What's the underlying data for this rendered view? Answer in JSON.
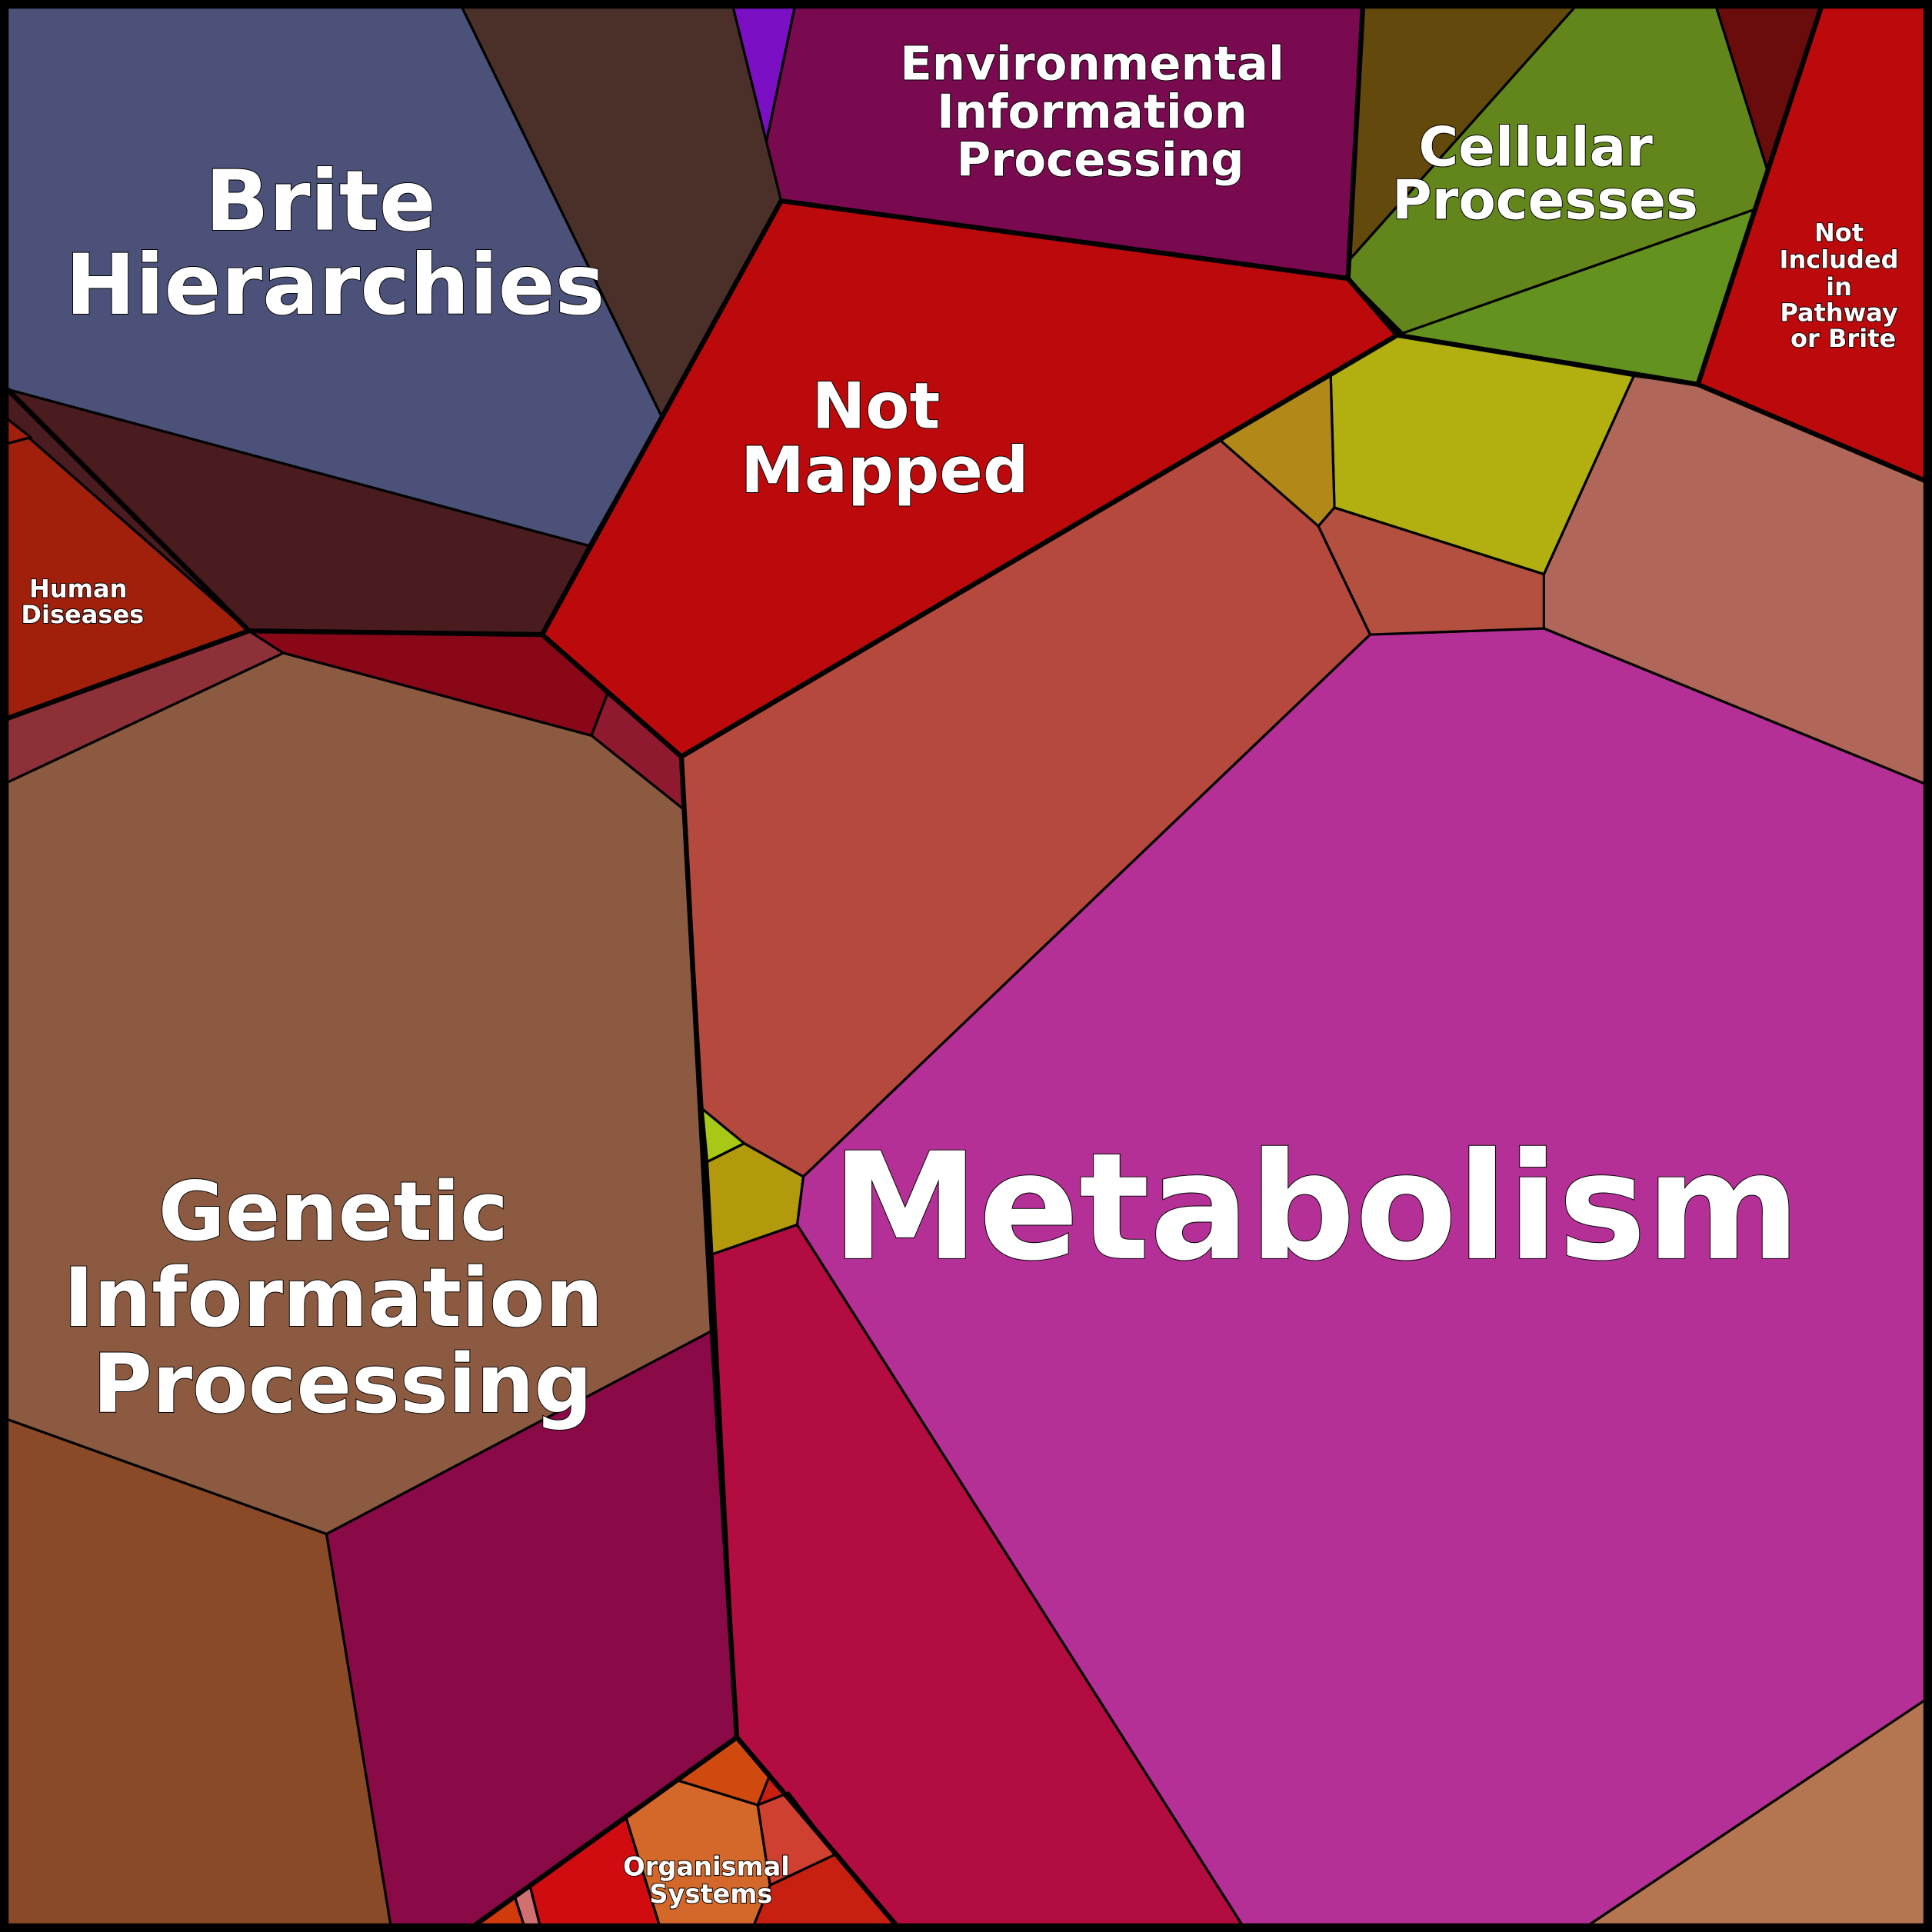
{
  "labels": [
    {
      "lines": [
        "Brite",
        "Hierarchies"
      ]
    },
    {
      "lines": [
        "Environmental",
        "Information",
        "Processing"
      ]
    },
    {
      "lines": [
        "Cellular",
        "Processes"
      ]
    },
    {
      "lines": [
        "Not",
        "Included",
        "in",
        "Pathway",
        "or Brite"
      ]
    },
    {
      "lines": [
        "Not",
        "Mapped"
      ]
    },
    {
      "lines": [
        "Human",
        "Diseases"
      ]
    },
    {
      "lines": [
        "Genetic",
        "Information",
        "Processing"
      ]
    },
    {
      "lines": [
        "Metabolism"
      ]
    },
    {
      "lines": [
        "Organismal",
        "Systems"
      ]
    }
  ]
}
